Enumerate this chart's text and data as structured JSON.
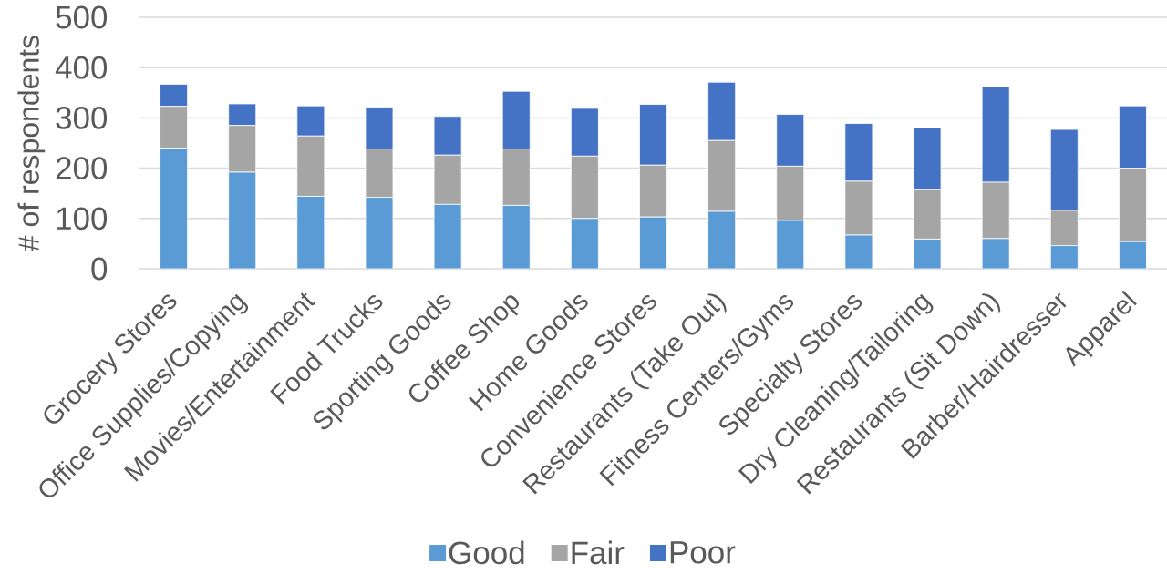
{
  "chart_data": {
    "type": "bar",
    "stacked": true,
    "ylabel": "# of respondents",
    "categories": [
      "Grocery Stores",
      "Office Supplies/Copying",
      "Movies/Entertainment",
      "Food Trucks",
      "Sporting Goods",
      "Coffee Shop",
      "Home Goods",
      "Convenience Stores",
      "Restaurants (Take Out)",
      "Fitness Centers/Gyms",
      "Specialty Stores",
      "Dry Cleaning/Tailoring",
      "Restaurants (Sit Down)",
      "Barber/Hairdresser",
      "Apparel"
    ],
    "series": [
      {
        "name": "Good",
        "color": "#5b9bd5",
        "values": [
          240,
          192,
          144,
          142,
          128,
          126,
          100,
          103,
          114,
          96,
          67,
          59,
          60,
          46,
          54
        ]
      },
      {
        "name": "Fair",
        "color": "#a5a5a5",
        "values": [
          83,
          93,
          120,
          96,
          98,
          112,
          124,
          103,
          141,
          108,
          107,
          99,
          112,
          70,
          146
        ]
      },
      {
        "name": "Poor",
        "color": "#4472c4",
        "values": [
          44,
          43,
          60,
          83,
          77,
          115,
          95,
          121,
          116,
          103,
          115,
          123,
          190,
          161,
          124
        ]
      }
    ],
    "ylim": [
      0,
      500
    ],
    "yticks": [
      0,
      100,
      200,
      300,
      400,
      500
    ],
    "grid": "y",
    "legend": "bottom"
  }
}
